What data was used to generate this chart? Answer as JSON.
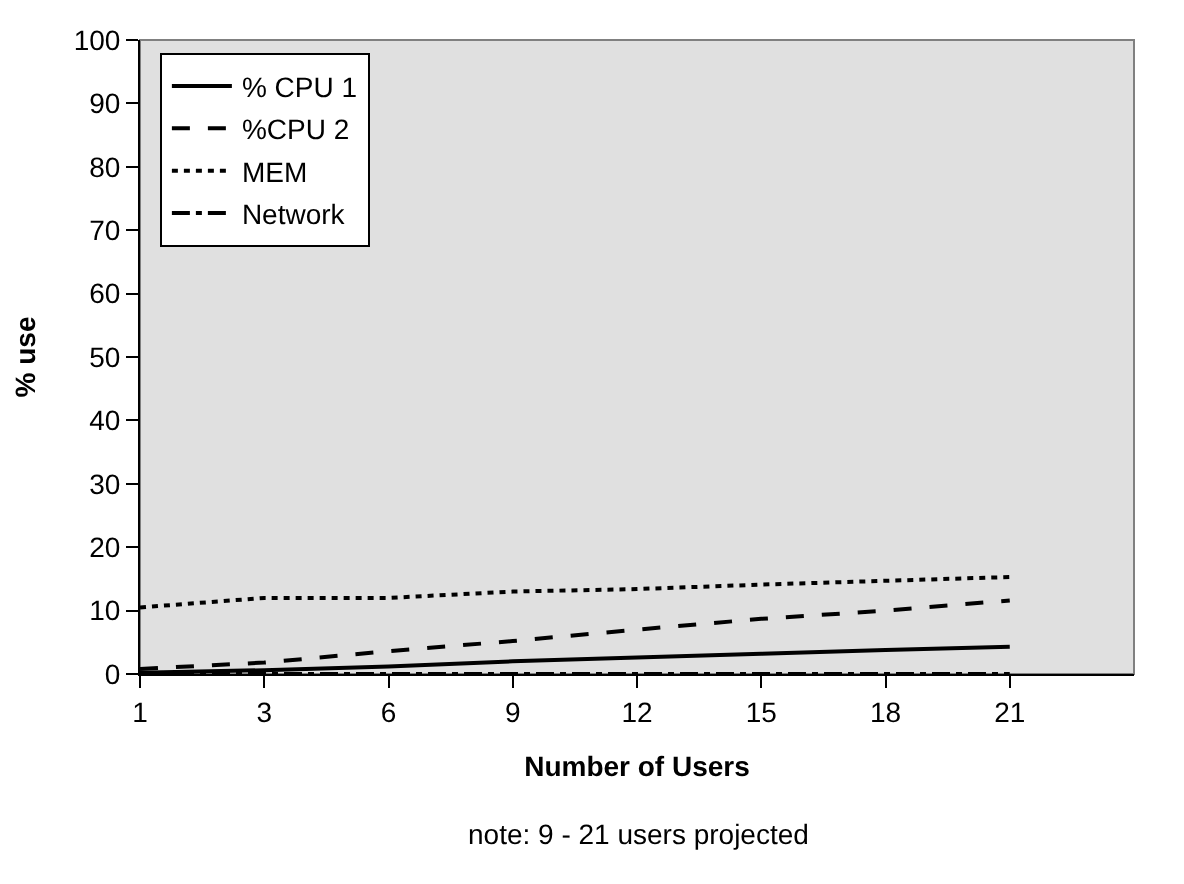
{
  "chart_data": {
    "type": "line",
    "xlabel": "Number of Users",
    "ylabel": "% use",
    "categories": [
      "1",
      "3",
      "6",
      "9",
      "12",
      "15",
      "18",
      "21",
      null
    ],
    "series": [
      {
        "name": "% CPU 1",
        "color": "#000000",
        "line_style": "solid",
        "values": [
          0.2,
          0.6,
          1.2,
          2,
          2.6,
          3.2,
          3.8,
          4.3,
          null
        ]
      },
      {
        "name": "%CPU 2",
        "color": "#000000",
        "line_style": "dashed",
        "values": [
          0.8,
          1.8,
          3.6,
          5.2,
          7,
          8.7,
          10,
          11.6,
          null
        ]
      },
      {
        "name": "MEM",
        "color": "#000000",
        "line_style": "dotted",
        "values": [
          10.5,
          12,
          12,
          13,
          13.4,
          14.1,
          14.7,
          15.3,
          null
        ]
      },
      {
        "name": "Network",
        "color": "#000000",
        "line_style": "dashdot",
        "values": [
          0,
          0,
          0,
          0,
          0,
          0,
          0,
          0,
          null
        ]
      }
    ],
    "ylim": [
      0,
      100
    ],
    "yticks": [
      0,
      10,
      20,
      30,
      40,
      50,
      60,
      70,
      80,
      90,
      100
    ],
    "grid": false,
    "legend": "top left",
    "marker": "none",
    "annotations": [
      "note: 9 - 21 users projected"
    ]
  }
}
